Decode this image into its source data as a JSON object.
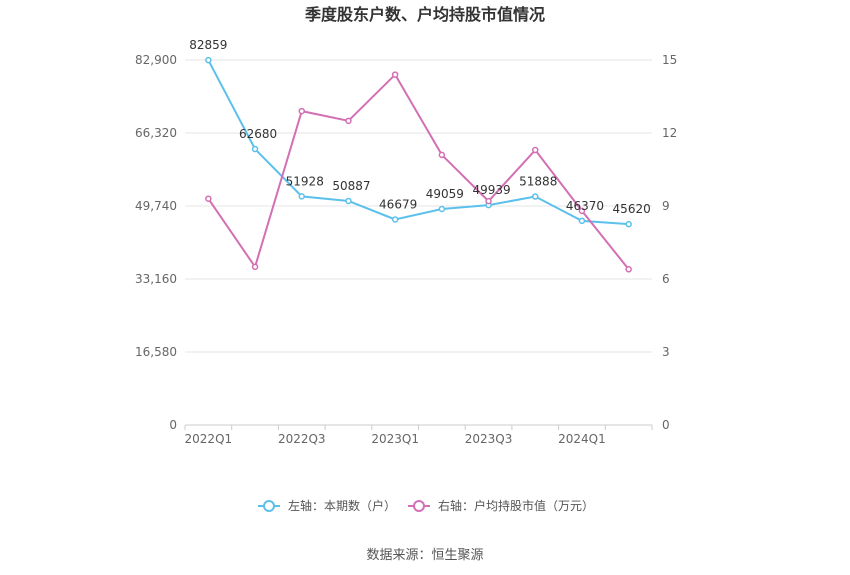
{
  "chart_data": {
    "type": "line",
    "title": "季度股东户数、户均持股市值情况",
    "x": [
      "2022Q1",
      "2022Q2",
      "2022Q3",
      "2022Q4",
      "2023Q1",
      "2023Q2",
      "2023Q3",
      "2023Q4",
      "2024Q1",
      "2024Q2"
    ],
    "x_tick_labels": [
      "2022Q1",
      "2022Q3",
      "2023Q1",
      "2023Q3",
      "2024Q1"
    ],
    "left_axis": {
      "ylim": [
        0,
        82900
      ],
      "ticks": [
        0,
        16580,
        33160,
        49740,
        66320,
        82900
      ],
      "tick_labels": [
        "0",
        "16,580",
        "33,160",
        "49,740",
        "66,320",
        "82,900"
      ]
    },
    "right_axis": {
      "ylim": [
        0,
        15
      ],
      "ticks": [
        0,
        3,
        6,
        9,
        12,
        15
      ],
      "tick_labels": [
        "0",
        "3",
        "6",
        "9",
        "12",
        "15"
      ]
    },
    "series": [
      {
        "name": "左轴：本期数（户）",
        "axis": "left",
        "color": "#5bc0eb",
        "values": [
          82859,
          62680,
          51928,
          50887,
          46679,
          49059,
          49939,
          51888,
          46370,
          45620
        ],
        "labels": [
          "82859",
          "62680",
          "51928",
          "50887",
          "46679",
          "49059",
          "49939",
          "51888",
          "46370",
          "45620"
        ]
      },
      {
        "name": "右轴：户均持股市值（万元）",
        "axis": "right",
        "color": "#d36fb4",
        "values": [
          9.3,
          6.5,
          12.9,
          12.5,
          14.4,
          11.1,
          9.2,
          11.3,
          8.8,
          6.4
        ]
      }
    ],
    "legend_position": "bottom-center",
    "grid": true,
    "source": "数据来源：恒生聚源"
  }
}
